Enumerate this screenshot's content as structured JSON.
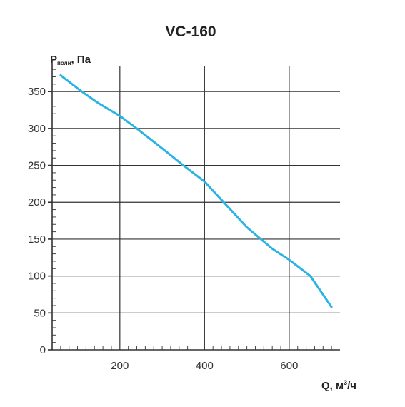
{
  "chart_data": {
    "type": "line",
    "title": "VC-160",
    "ylabel": {
      "main": "P",
      "sub": "полн",
      "rest": ", Па"
    },
    "xlabel": {
      "main": "Q, м",
      "sup": "3",
      "rest": "/ч"
    },
    "xlim": [
      40,
      720
    ],
    "ylim": [
      0,
      385
    ],
    "x_ticks": [
      200,
      400,
      600
    ],
    "y_ticks": [
      0,
      50,
      100,
      150,
      200,
      250,
      300,
      350
    ],
    "x_tick_labels": [
      "200",
      "400",
      "600"
    ],
    "y_tick_labels": [
      "0",
      "50",
      "100",
      "150",
      "200",
      "250",
      "300",
      "350"
    ],
    "grid": true,
    "series": [
      {
        "color": "#2ab3e3",
        "points": [
          [
            60,
            372
          ],
          [
            110,
            350
          ],
          [
            150,
            334
          ],
          [
            200,
            317
          ],
          [
            240,
            300
          ],
          [
            300,
            273
          ],
          [
            350,
            250
          ],
          [
            400,
            228
          ],
          [
            450,
            197
          ],
          [
            500,
            166
          ],
          [
            560,
            137
          ],
          [
            600,
            122
          ],
          [
            650,
            100
          ],
          [
            700,
            58
          ]
        ]
      }
    ]
  }
}
